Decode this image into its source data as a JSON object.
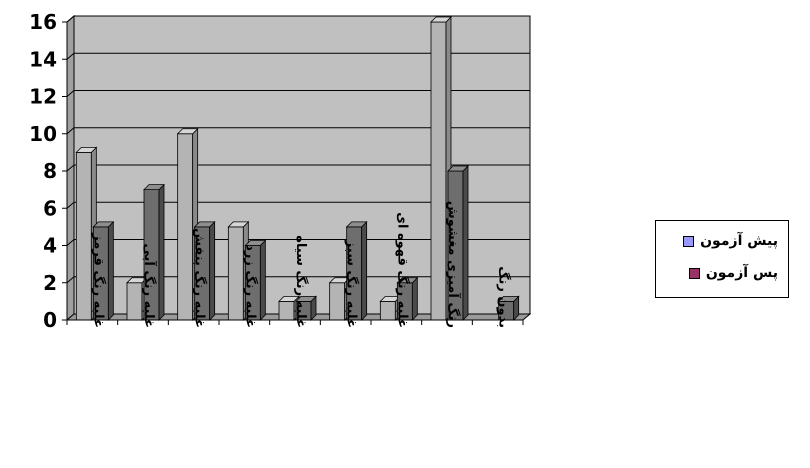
{
  "chart_data": {
    "type": "bar",
    "categories": [
      "غلبه رنگ قرمز",
      "غلبه رنگ آبی",
      "غلبه رنگ بنفش",
      "غلبه رنگ زرد",
      "غلبه رنگ سیاه",
      "غلبه رنگ سبز",
      "غلبه رنگ قهوه ای",
      "رنگ آمیزی مغشوش",
      "بدون رنگ"
    ],
    "series": [
      {
        "name": "پیش آزمون",
        "values": [
          9,
          2,
          10,
          5,
          1,
          2,
          1,
          16,
          0
        ]
      },
      {
        "name": "پس آزمون",
        "values": [
          5,
          7,
          5,
          4,
          1,
          5,
          2,
          8,
          1
        ]
      }
    ],
    "ylim": [
      0,
      16
    ],
    "yticks": [
      0,
      2,
      4,
      6,
      8,
      10,
      12,
      14,
      16
    ],
    "grid": true,
    "legend_position": "right",
    "colors": {
      "plot_bg": "#c0c0c0",
      "series_pre": "#9999ff",
      "series_post": "#993366",
      "bar_pre_front": "#b4b4b4",
      "bar_post_front": "#6e6e6e"
    }
  }
}
